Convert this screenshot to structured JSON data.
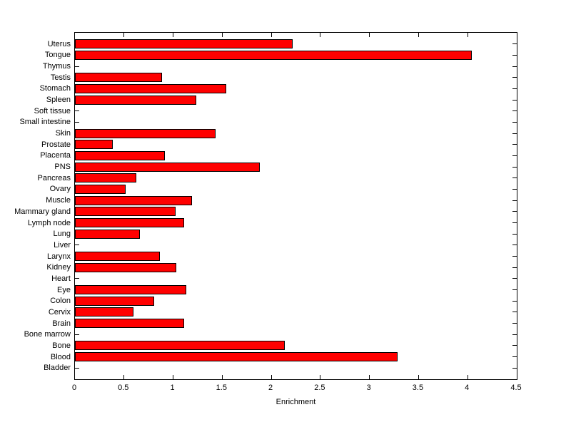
{
  "chart_data": {
    "type": "bar",
    "orientation": "horizontal",
    "title": "",
    "xlabel": "Enrichment",
    "ylabel": "",
    "xlim": [
      0,
      4.5
    ],
    "xticks": [
      0,
      0.5,
      1,
      1.5,
      2,
      2.5,
      3,
      3.5,
      4,
      4.5
    ],
    "xtick_labels": [
      "0",
      "0.5",
      "1",
      "1.5",
      "2",
      "2.5",
      "3",
      "3.5",
      "4",
      "4.5"
    ],
    "grid": "off",
    "legend": "none",
    "bar_color": "#ff0000",
    "bar_edge_color": "#000000",
    "axis_color": "#000000",
    "background_color": "#ffffff",
    "categories": [
      "Uterus",
      "Tongue",
      "Thymus",
      "Testis",
      "Stomach",
      "Spleen",
      "Soft tissue",
      "Small intestine",
      "Skin",
      "Prostate",
      "Placenta",
      "PNS",
      "Pancreas",
      "Ovary",
      "Muscle",
      "Mammary gland",
      "Lymph node",
      "Lung",
      "Liver",
      "Larynx",
      "Kidney",
      "Heart",
      "Eye",
      "Colon",
      "Cervix",
      "Brain",
      "Bone marrow",
      "Bone",
      "Blood",
      "Bladder"
    ],
    "values": [
      2.2,
      4.03,
      0,
      0.87,
      1.53,
      1.22,
      0,
      0,
      1.42,
      0.37,
      0.9,
      1.87,
      0.61,
      0.5,
      1.18,
      1.01,
      1.1,
      0.65,
      0,
      0.85,
      1.02,
      0,
      1.12,
      0.79,
      0.58,
      1.1,
      0,
      2.12,
      3.27,
      0
    ]
  }
}
